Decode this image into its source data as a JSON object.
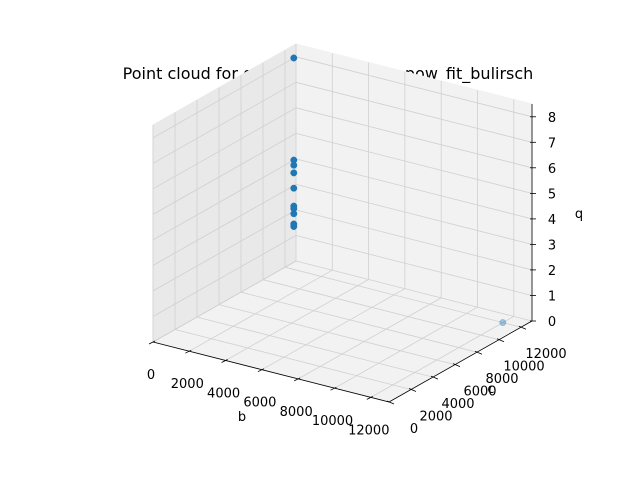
{
  "chart_data": {
    "type": "scatter",
    "projection": "3d",
    "title": "Point cloud for g_tenth_hp_log_log_pow_fit_bulirsch",
    "xlabel": "b",
    "ylabel": "c",
    "zlabel": "q",
    "xlim": [
      0,
      13000
    ],
    "ylim": [
      0,
      13000
    ],
    "zlim": [
      0,
      8.5
    ],
    "xticks": [
      "0",
      "2000",
      "4000",
      "6000",
      "8000",
      "10000",
      "12000"
    ],
    "yticks": [
      "0",
      "2000",
      "4000",
      "6000",
      "8000",
      "10000",
      "12000"
    ],
    "zticks": [
      "0",
      "1",
      "2",
      "3",
      "4",
      "5",
      "6",
      "7",
      "8"
    ],
    "grid": true,
    "marker_color": "#1f77b4",
    "series": [
      {
        "points": [
          {
            "x": 0,
            "y": 12800,
            "z": 8.0
          },
          {
            "x": 0,
            "y": 12800,
            "z": 4.0
          },
          {
            "x": 0,
            "y": 12800,
            "z": 3.8
          },
          {
            "x": 0,
            "y": 12800,
            "z": 3.5
          },
          {
            "x": 0,
            "y": 12800,
            "z": 2.9
          },
          {
            "x": 0,
            "y": 12800,
            "z": 2.2
          },
          {
            "x": 0,
            "y": 12800,
            "z": 2.1
          },
          {
            "x": 0,
            "y": 12800,
            "z": 1.9
          },
          {
            "x": 0,
            "y": 12800,
            "z": 1.5
          },
          {
            "x": 0,
            "y": 12800,
            "z": 1.4
          },
          {
            "x": 12000,
            "y": 12000,
            "z": 0.0
          }
        ]
      }
    ]
  }
}
